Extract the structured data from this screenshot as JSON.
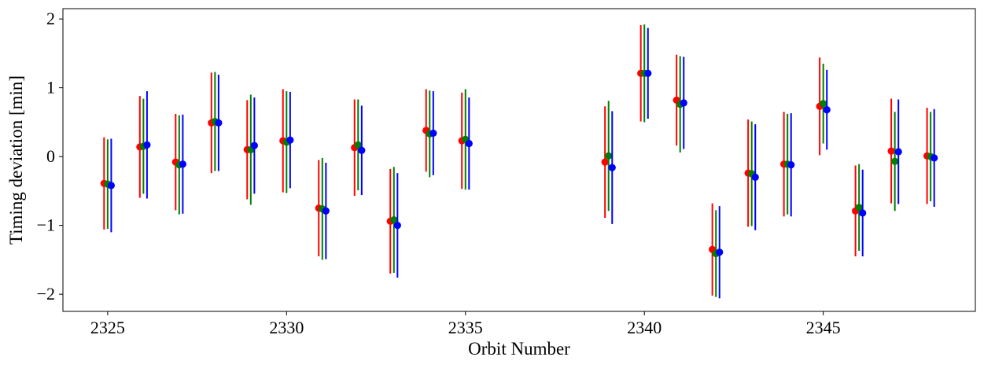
{
  "chart_data": {
    "type": "scatter",
    "xlabel": "Orbit Number",
    "ylabel": "Timing deviation [min]",
    "xlim": [
      2323.75,
      2349.25
    ],
    "ylim": [
      -2.25,
      2.15
    ],
    "x_ticks": [
      2325,
      2330,
      2335,
      2340,
      2345
    ],
    "y_ticks": [
      -2,
      -1,
      0,
      1,
      2
    ],
    "x_tick_labels": [
      "2325",
      "2330",
      "2335",
      "2340",
      "2345"
    ],
    "y_tick_labels": [
      "−2",
      "−1",
      "0",
      "1",
      "2"
    ],
    "grid": false,
    "legend": "none",
    "x_offset_per_series": 0.1,
    "series": [
      {
        "color": "#ff0000",
        "x": [
          2325,
          2326,
          2327,
          2328,
          2329,
          2330,
          2331,
          2332,
          2333,
          2334,
          2335,
          2339,
          2340,
          2341,
          2342,
          2343,
          2344,
          2345,
          2346,
          2347,
          2348
        ],
        "y": [
          -0.39,
          0.14,
          -0.08,
          0.49,
          0.1,
          0.23,
          -0.75,
          0.13,
          -0.94,
          0.38,
          0.23,
          -0.08,
          1.21,
          0.82,
          -1.35,
          -0.24,
          -0.11,
          0.73,
          -0.79,
          0.08,
          0.01
        ],
        "yerr": [
          0.67,
          0.74,
          0.7,
          0.73,
          0.72,
          0.75,
          0.7,
          0.7,
          0.76,
          0.6,
          0.7,
          0.81,
          0.7,
          0.66,
          0.67,
          0.78,
          0.76,
          0.71,
          0.66,
          0.76,
          0.7
        ]
      },
      {
        "color": "#008000",
        "x": [
          2325,
          2326,
          2327,
          2328,
          2329,
          2330,
          2331,
          2332,
          2333,
          2334,
          2335,
          2339,
          2340,
          2341,
          2342,
          2343,
          2344,
          2345,
          2346,
          2347,
          2348
        ],
        "y": [
          -0.4,
          0.15,
          -0.12,
          0.51,
          0.1,
          0.21,
          -0.76,
          0.17,
          -0.92,
          0.33,
          0.25,
          0.01,
          1.21,
          0.76,
          -1.41,
          -0.25,
          -0.11,
          0.77,
          -0.74,
          -0.07,
          0.0
        ],
        "yerr": [
          0.65,
          0.69,
          0.72,
          0.72,
          0.8,
          0.74,
          0.74,
          0.66,
          0.77,
          0.63,
          0.73,
          0.8,
          0.71,
          0.7,
          0.63,
          0.76,
          0.73,
          0.58,
          0.63,
          0.72,
          0.65
        ]
      },
      {
        "color": "#0000ff",
        "x": [
          2325,
          2326,
          2327,
          2328,
          2329,
          2330,
          2331,
          2332,
          2333,
          2334,
          2335,
          2339,
          2340,
          2341,
          2342,
          2343,
          2344,
          2345,
          2346,
          2347,
          2348
        ],
        "y": [
          -0.42,
          0.17,
          -0.11,
          0.49,
          0.16,
          0.24,
          -0.79,
          0.09,
          -1.0,
          0.34,
          0.19,
          -0.16,
          1.21,
          0.78,
          -1.39,
          -0.3,
          -0.12,
          0.68,
          -0.82,
          0.07,
          -0.02
        ],
        "yerr": [
          0.68,
          0.78,
          0.72,
          0.7,
          0.7,
          0.7,
          0.7,
          0.65,
          0.76,
          0.61,
          0.67,
          0.82,
          0.66,
          0.67,
          0.67,
          0.77,
          0.75,
          0.58,
          0.63,
          0.76,
          0.71
        ]
      }
    ]
  }
}
